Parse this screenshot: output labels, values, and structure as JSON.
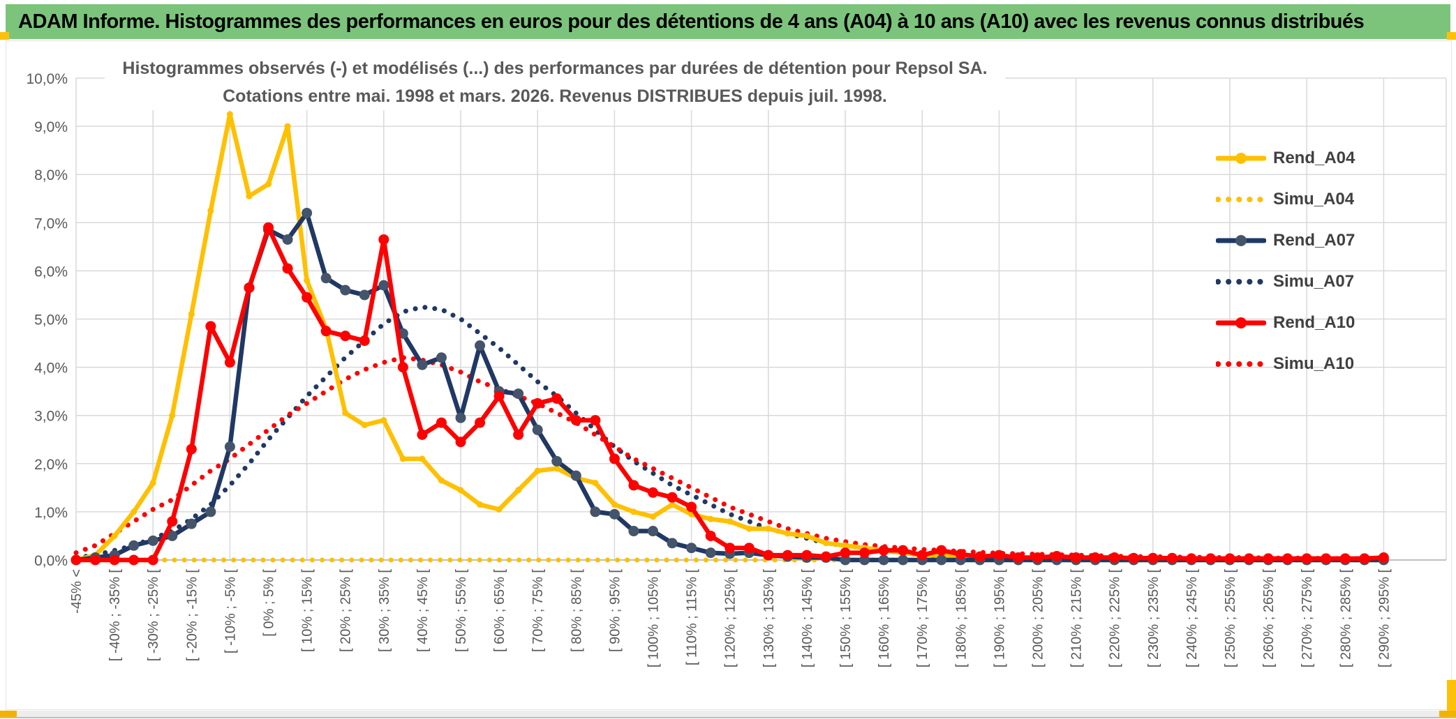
{
  "banner": {
    "title": "ADAM Informe. Histogrammes des performances en euros pour des détentions de 4 ans (A04) à 10 ans (A10) avec les revenus connus distribués"
  },
  "chart_data": {
    "type": "line",
    "title_line1": "Histogrammes observés (-) et modélisés (...) des performances par durées de détention pour Repsol SA.",
    "title_line2": "Cotations entre mai. 1998 et mars. 2026. Revenus DISTRIBUES depuis juil. 1998.",
    "xlabel": "",
    "ylabel": "",
    "ylim": [
      0,
      10
    ],
    "y_ticks": [
      "0,0%",
      "1,0%",
      "2,0%",
      "3,0%",
      "4,0%",
      "5,0%",
      "6,0%",
      "7,0%",
      "8,0%",
      "9,0%",
      "10,0%"
    ],
    "n_bins": 69,
    "bin_width_pct": 5,
    "tick_every_bins": 2,
    "grid_every_bins": 4,
    "legend_position": "right",
    "categories": [
      "-45% <",
      "[ -40% ; -35% [",
      "[ -30% ; -25% [",
      "[ -20% ; -15% [",
      "[ -10% ; -5% [",
      "[ 0% ; 5% [",
      "[ 10% ; 15% [",
      "[ 20% ; 25% [",
      "[ 30% ; 35% [",
      "[ 40% ; 45% [",
      "[ 50% ; 55% [",
      "[ 60% ; 65% [",
      "[ 70% ; 75% [",
      "[ 80% ; 85% [",
      "[ 90% ; 95% [",
      "[ 100% ; 105% [",
      "[ 110% ; 115% [",
      "[ 120% ; 125% [",
      "[ 130% ; 135% [",
      "[ 140% ; 145% [",
      "[ 150% ; 155% [",
      "[ 160% ; 165% [",
      "[ 170% ; 175% [",
      "[ 180% ; 185% [",
      "[ 190% ; 195% [",
      "[ 200% ; 205% [",
      "[ 210% ; 215% [",
      "[ 220% ; 225% [",
      "[ 230% ; 235% [",
      "[ 240% ; 245% [",
      "[ 250% ; 255% [",
      "[ 260% ; 265% [",
      "[ 270% ; 275% [",
      "[ 280% ; 285% [",
      "[ 290% ; 295% ["
    ],
    "colors": {
      "gold": "#FFC000",
      "navy": "#203864",
      "navy_marker": "#44546A",
      "red": "#FF0000",
      "grid": "#D9D9D9",
      "axis": "#BFBFBF",
      "text": "#595959"
    },
    "series": [
      {
        "name": "Rend_A04",
        "color": "#FFC000",
        "style": "solid",
        "marker": true,
        "marker_color": "#FFC000",
        "marker_r": 4.5,
        "values": [
          0,
          0.1,
          0.5,
          1.0,
          1.6,
          3.0,
          5.1,
          7.25,
          9.25,
          7.55,
          7.8,
          9.0,
          5.8,
          4.8,
          3.05,
          2.8,
          2.9,
          2.1,
          2.1,
          1.65,
          1.45,
          1.15,
          1.05,
          1.45,
          1.85,
          1.9,
          1.7,
          1.6,
          1.15,
          1.0,
          0.9,
          1.15,
          0.95,
          0.85,
          0.8,
          0.65,
          0.65,
          0.55,
          0.5,
          0.35,
          0.3,
          0.25,
          0.2,
          0.15,
          0.1,
          0.1,
          0.05,
          0.05,
          0.05,
          0.05,
          0,
          0,
          0,
          0,
          0,
          0,
          0,
          0,
          0,
          0,
          0,
          0,
          0,
          0,
          0,
          0,
          0,
          0,
          0
        ]
      },
      {
        "name": "Simu_A04",
        "color": "#FFC000",
        "style": "dotted",
        "marker": false,
        "values": [
          0,
          0,
          0,
          0,
          0,
          0,
          0,
          0,
          0,
          0,
          0,
          0,
          0,
          0,
          0,
          0,
          0,
          0,
          0,
          0,
          0,
          0,
          0,
          0,
          0,
          0,
          0,
          0,
          0,
          0,
          0,
          0,
          0,
          0,
          0,
          0,
          0,
          0,
          0,
          0,
          0,
          0,
          0,
          0,
          0,
          0,
          0,
          0,
          0,
          0,
          0,
          0,
          0,
          0,
          0,
          0,
          0,
          0,
          0,
          0,
          0,
          0,
          0,
          0,
          0,
          0,
          0,
          0,
          0
        ]
      },
      {
        "name": "Rend_A07",
        "color": "#203864",
        "style": "solid",
        "marker": true,
        "marker_color": "#44546A",
        "marker_r": 7.5,
        "values": [
          0,
          0.05,
          0.1,
          0.3,
          0.4,
          0.5,
          0.75,
          1.0,
          2.35,
          5.65,
          6.85,
          6.65,
          7.2,
          5.85,
          5.6,
          5.5,
          5.7,
          4.7,
          4.05,
          4.2,
          2.95,
          4.45,
          3.5,
          3.45,
          2.7,
          2.05,
          1.75,
          1.0,
          0.95,
          0.6,
          0.6,
          0.35,
          0.25,
          0.15,
          0.13,
          0.15,
          0.1,
          0.07,
          0.05,
          0.05,
          0,
          0,
          0,
          0,
          0,
          0,
          0,
          0,
          0,
          0,
          0,
          0,
          0,
          0,
          0,
          0,
          0,
          0,
          0,
          0,
          0,
          0,
          0,
          0,
          0,
          0,
          0,
          0,
          0
        ]
      },
      {
        "name": "Simu_A07",
        "color": "#203864",
        "style": "dotted",
        "marker": false,
        "values": [
          0.05,
          0.1,
          0.2,
          0.3,
          0.45,
          0.6,
          0.85,
          1.15,
          1.55,
          2.0,
          2.5,
          2.95,
          3.4,
          3.8,
          4.2,
          4.55,
          4.9,
          5.15,
          5.25,
          5.2,
          5.0,
          4.7,
          4.4,
          4.05,
          3.7,
          3.4,
          3.05,
          2.7,
          2.35,
          2.05,
          1.8,
          1.55,
          1.35,
          1.15,
          0.95,
          0.8,
          0.65,
          0.55,
          0.45,
          0.35,
          0.3,
          0.25,
          0.2,
          0.15,
          0.1,
          0.08,
          0.06,
          0.05,
          0.04,
          0.03,
          0.02,
          0.02,
          0.01,
          0.01,
          0,
          0,
          0,
          0,
          0,
          0,
          0,
          0,
          0,
          0,
          0,
          0,
          0,
          0,
          0
        ]
      },
      {
        "name": "Rend_A10",
        "color": "#FF0000",
        "style": "solid",
        "marker": true,
        "marker_color": "#FF0000",
        "marker_r": 7.5,
        "values": [
          0,
          0,
          0,
          0,
          0,
          0.8,
          2.3,
          4.85,
          4.1,
          5.65,
          6.9,
          6.05,
          5.45,
          4.75,
          4.65,
          4.55,
          6.65,
          4.0,
          2.6,
          2.85,
          2.45,
          2.85,
          3.4,
          2.6,
          3.25,
          3.35,
          2.9,
          2.9,
          2.1,
          1.55,
          1.4,
          1.3,
          1.1,
          0.5,
          0.25,
          0.25,
          0.1,
          0.1,
          0.1,
          0.07,
          0.15,
          0.15,
          0.2,
          0.2,
          0.1,
          0.2,
          0.12,
          0.07,
          0.1,
          0.05,
          0.05,
          0.08,
          0.05,
          0.05,
          0.05,
          0.04,
          0.04,
          0.04,
          0.03,
          0.03,
          0.03,
          0.03,
          0.03,
          0.03,
          0.03,
          0.03,
          0.03,
          0.03,
          0.05
        ]
      },
      {
        "name": "Simu_A10",
        "color": "#FF0000",
        "style": "dotted",
        "marker": false,
        "values": [
          0.15,
          0.3,
          0.55,
          0.8,
          1.05,
          1.25,
          1.55,
          1.85,
          2.1,
          2.4,
          2.7,
          3.0,
          3.25,
          3.5,
          3.75,
          3.95,
          4.1,
          4.2,
          4.15,
          4.05,
          3.9,
          3.7,
          3.55,
          3.4,
          3.25,
          3.05,
          2.85,
          2.6,
          2.35,
          2.1,
          1.9,
          1.7,
          1.5,
          1.3,
          1.1,
          0.95,
          0.8,
          0.65,
          0.55,
          0.45,
          0.38,
          0.32,
          0.28,
          0.25,
          0.22,
          0.2,
          0.18,
          0.16,
          0.14,
          0.13,
          0.12,
          0.11,
          0.1,
          0.09,
          0.08,
          0.07,
          0.07,
          0.06,
          0.06,
          0.05,
          0.05,
          0.05,
          0.04,
          0.04,
          0.04,
          0.03,
          0.03,
          0.03,
          0.03
        ]
      }
    ]
  }
}
